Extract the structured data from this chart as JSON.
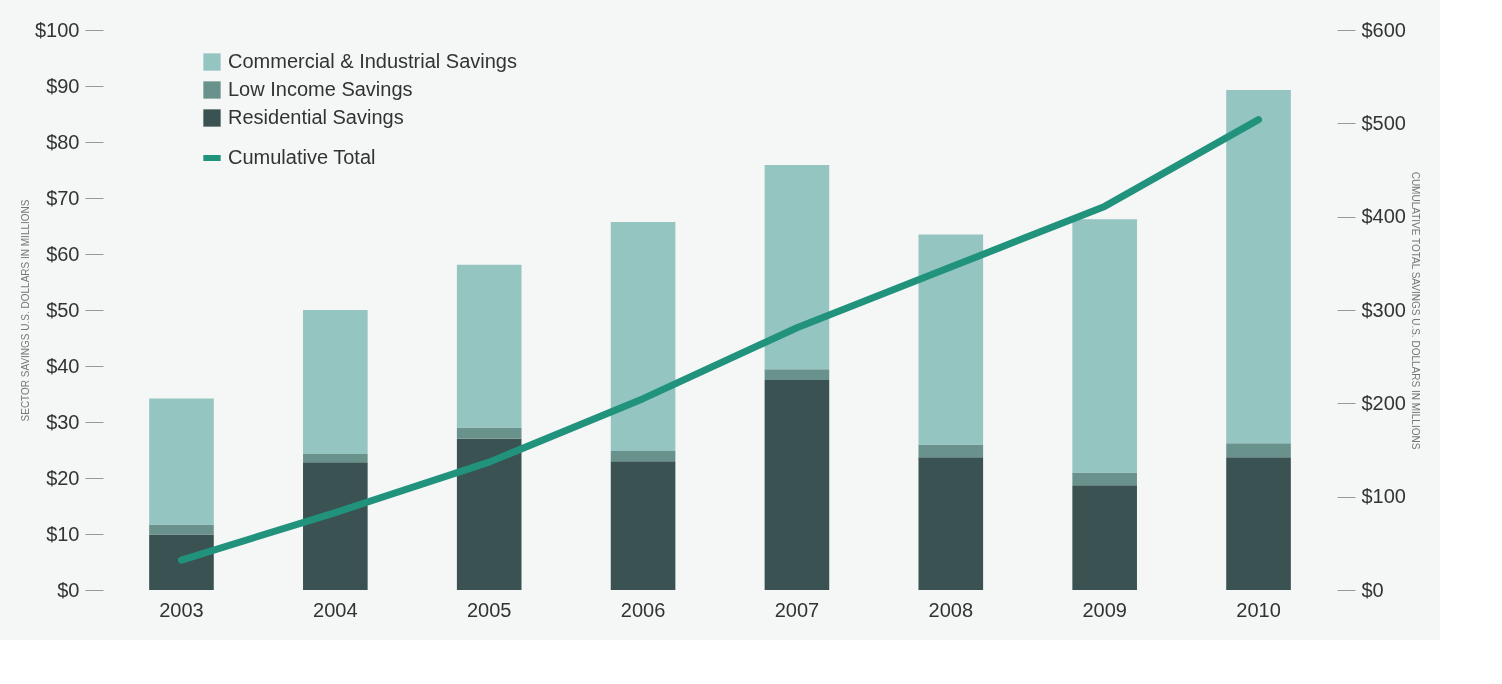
{
  "chart_data": {
    "type": "bar",
    "stacked": true,
    "categories": [
      "2003",
      "2004",
      "2005",
      "2006",
      "2007",
      "2008",
      "2009",
      "2010"
    ],
    "ylabel": "SECTOR SAVINGS U.S. DOLLARS IN MILLIONS",
    "y2label": "CUMULATIVE TOTAL SAVINGS U.S. DOLLARS IN MILLIONS",
    "ylim": [
      0,
      100
    ],
    "yticks": [
      {
        "value": 0,
        "label": "$0"
      },
      {
        "value": 10,
        "label": "$10"
      },
      {
        "value": 20,
        "label": "$20"
      },
      {
        "value": 30,
        "label": "$30"
      },
      {
        "value": 40,
        "label": "$40"
      },
      {
        "value": 50,
        "label": "$50"
      },
      {
        "value": 60,
        "label": "$60"
      },
      {
        "value": 70,
        "label": "$70"
      },
      {
        "value": 80,
        "label": "$80"
      },
      {
        "value": 90,
        "label": "$90"
      },
      {
        "value": 100,
        "label": "$100"
      }
    ],
    "y2lim": [
      0,
      600
    ],
    "y2ticks": [
      {
        "value": 0,
        "label": "$0"
      },
      {
        "value": 100,
        "label": "$100"
      },
      {
        "value": 200,
        "label": "$200"
      },
      {
        "value": 300,
        "label": "$300"
      },
      {
        "value": 400,
        "label": "$400"
      },
      {
        "value": 500,
        "label": "$500"
      },
      {
        "value": 600,
        "label": "$600"
      }
    ],
    "series": [
      {
        "name": "Residential Savings",
        "color": "#3b5253",
        "values": [
          9.9,
          22.8,
          27,
          23,
          37.5,
          23.7,
          18.7,
          23.7
        ]
      },
      {
        "name": "Low Income Savings",
        "color": "#6a928d",
        "values": [
          1.8,
          1.5,
          2,
          1.8,
          1.9,
          2.3,
          2.3,
          2.5
        ]
      },
      {
        "name": "Commercial & Industrial Savings",
        "color": "#94c5c1",
        "values": [
          22.5,
          25.7,
          29.1,
          40.9,
          36.5,
          37.5,
          45.2,
          63.1
        ]
      },
      {
        "name": "Cumulative Total",
        "color": "#21937d",
        "type": "line",
        "axis": "y2",
        "values": [
          32,
          83,
          137,
          205,
          281,
          346,
          411,
          504
        ]
      }
    ],
    "legend": "top left",
    "grid": false
  }
}
